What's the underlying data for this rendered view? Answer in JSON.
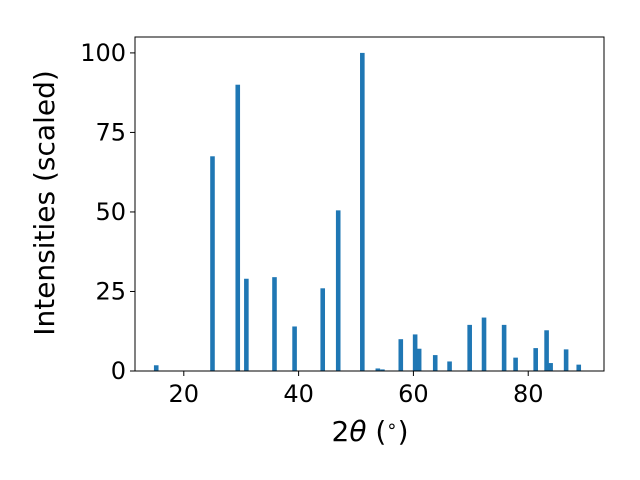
{
  "chart_data": {
    "type": "bar",
    "xlabel_main": "2",
    "xlabel_theta": "θ",
    "xlabel_unit": " (",
    "xlabel_degree": "∘",
    "xlabel_close": ")",
    "ylabel": "Intensities (scaled)",
    "xlim": [
      11.5,
      93.2
    ],
    "ylim": [
      0,
      105
    ],
    "xticks": [
      20,
      40,
      60,
      80
    ],
    "yticks": [
      0,
      25,
      50,
      75,
      100
    ],
    "grid": false,
    "bar_width": 0.8,
    "color": "#1f77b4",
    "peaks": [
      {
        "x": 15.2,
        "y": 1.8
      },
      {
        "x": 25.0,
        "y": 67.5
      },
      {
        "x": 29.4,
        "y": 90.0
      },
      {
        "x": 30.9,
        "y": 29.0
      },
      {
        "x": 35.8,
        "y": 29.5
      },
      {
        "x": 39.3,
        "y": 14.0
      },
      {
        "x": 44.2,
        "y": 26.0
      },
      {
        "x": 46.9,
        "y": 50.5
      },
      {
        "x": 51.1,
        "y": 100.0
      },
      {
        "x": 53.8,
        "y": 0.8
      },
      {
        "x": 54.6,
        "y": 0.5
      },
      {
        "x": 57.8,
        "y": 10.0
      },
      {
        "x": 60.3,
        "y": 11.5
      },
      {
        "x": 61.0,
        "y": 7.0
      },
      {
        "x": 63.8,
        "y": 5.0
      },
      {
        "x": 66.3,
        "y": 3.0
      },
      {
        "x": 69.8,
        "y": 14.5
      },
      {
        "x": 72.3,
        "y": 16.8
      },
      {
        "x": 75.8,
        "y": 14.5
      },
      {
        "x": 77.8,
        "y": 4.2
      },
      {
        "x": 81.3,
        "y": 7.2
      },
      {
        "x": 83.2,
        "y": 12.8
      },
      {
        "x": 83.9,
        "y": 2.5
      },
      {
        "x": 86.6,
        "y": 6.8
      },
      {
        "x": 88.8,
        "y": 2.0
      }
    ]
  }
}
